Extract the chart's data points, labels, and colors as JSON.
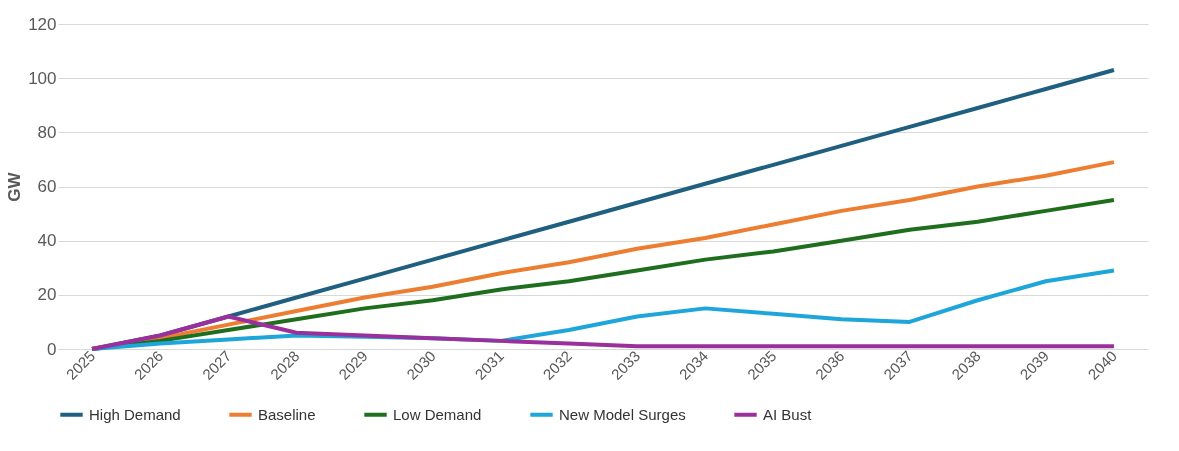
{
  "chart_data": {
    "type": "line",
    "ylabel": "GW",
    "categories": [
      "2025",
      "2026",
      "2027",
      "2028",
      "2029",
      "2030",
      "2031",
      "2032",
      "2033",
      "2034",
      "2035",
      "2036",
      "2037",
      "2038",
      "2039",
      "2040"
    ],
    "series": [
      {
        "name": "High Demand",
        "color": "#1f5f7f",
        "values": [
          0,
          5,
          12,
          19,
          26,
          33,
          40,
          47,
          54,
          61,
          68,
          75,
          82,
          89,
          96,
          103
        ]
      },
      {
        "name": "Baseline",
        "color": "#ed7d31",
        "values": [
          0,
          4,
          9,
          14,
          19,
          23,
          28,
          32,
          37,
          41,
          46,
          51,
          55,
          60,
          64,
          69
        ]
      },
      {
        "name": "Low Demand",
        "color": "#1e6e1e",
        "values": [
          0,
          3,
          7,
          11,
          15,
          18,
          22,
          25,
          29,
          33,
          36,
          40,
          44,
          47,
          51,
          55
        ]
      },
      {
        "name": "New Model Surges",
        "color": "#1ea5d9",
        "values": [
          0,
          2,
          3.5,
          5,
          4.5,
          4,
          3,
          7,
          12,
          15,
          13,
          11,
          10,
          18,
          25,
          29
        ]
      },
      {
        "name": "AI Bust",
        "color": "#9b2f9b",
        "values": [
          0,
          5,
          12,
          6,
          5,
          4,
          3,
          2,
          1,
          1,
          1,
          1,
          1,
          1,
          1,
          1
        ]
      }
    ],
    "ylim": [
      0,
      120
    ],
    "yticks": [
      0,
      20,
      40,
      60,
      80,
      100,
      120
    ],
    "grid": "y",
    "legend": "bottom",
    "marker": "none",
    "line_style": "solid"
  }
}
